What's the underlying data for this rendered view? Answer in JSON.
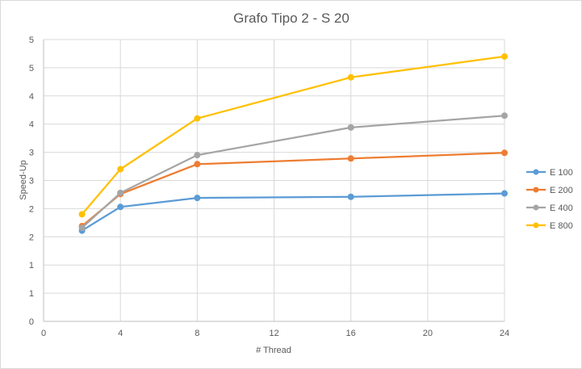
{
  "chart_data": {
    "type": "line",
    "title": "Grafo Tipo 2 - S 20",
    "xlabel": "# Thread",
    "ylabel": "Speed-Up",
    "xlim": [
      0,
      24
    ],
    "xticks": [
      0,
      4,
      8,
      12,
      16,
      20,
      24
    ],
    "ylim": [
      0,
      5
    ],
    "yticks": [
      0,
      0.5,
      1,
      1.5,
      2,
      2.5,
      3,
      3.5,
      4,
      4.5,
      5
    ],
    "ytick_labels": [
      "0",
      "1",
      "1",
      "2",
      "2",
      "3",
      "3",
      "4",
      "4",
      "5",
      "5"
    ],
    "grid": "major-both",
    "legend_position": "right",
    "x": [
      2,
      4,
      8,
      16,
      24
    ],
    "series": [
      {
        "name": "E 100",
        "color": "#5b9bd5",
        "values": [
          1.61,
          2.03,
          2.19,
          2.21,
          2.27
        ]
      },
      {
        "name": "E 200",
        "color": "#ed7d31",
        "values": [
          1.69,
          2.26,
          2.79,
          2.89,
          2.99
        ]
      },
      {
        "name": "E 400",
        "color": "#a5a5a5",
        "values": [
          1.66,
          2.28,
          2.95,
          3.44,
          3.65
        ]
      },
      {
        "name": "E 800",
        "color": "#ffc000",
        "values": [
          1.9,
          2.7,
          3.6,
          4.33,
          4.7
        ]
      }
    ]
  }
}
